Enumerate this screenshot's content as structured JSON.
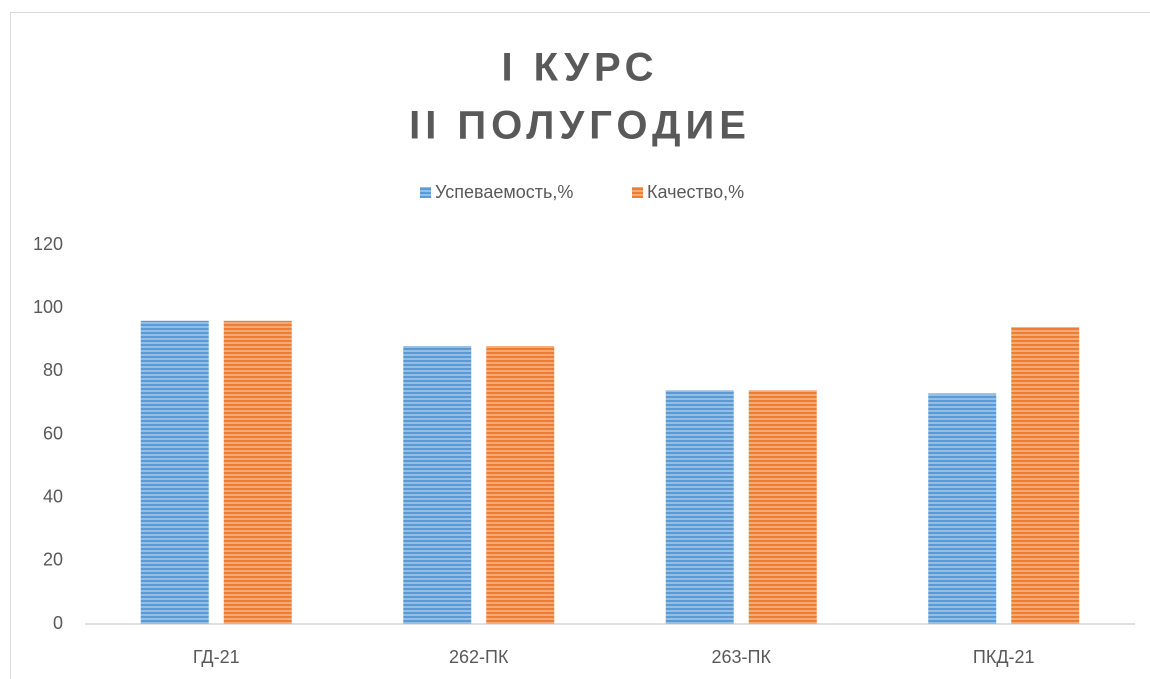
{
  "chart_data": {
    "type": "bar",
    "title": [
      "I КУРС",
      "II ПОЛУГОДИЕ"
    ],
    "categories": [
      "ГД-21",
      "262-ПК",
      "263-ПК",
      "ПКД-21"
    ],
    "series": [
      {
        "name": "Успеваемость,%",
        "color": "#5b9bd5",
        "values": [
          96,
          88,
          74,
          73
        ]
      },
      {
        "name": "Качество,%",
        "color": "#ed7d31",
        "values": [
          96,
          88,
          74,
          94
        ]
      }
    ],
    "ylim": [
      0,
      120
    ],
    "yticks": [
      0,
      20,
      40,
      60,
      80,
      100,
      120
    ],
    "grid": false,
    "legend": "top"
  }
}
